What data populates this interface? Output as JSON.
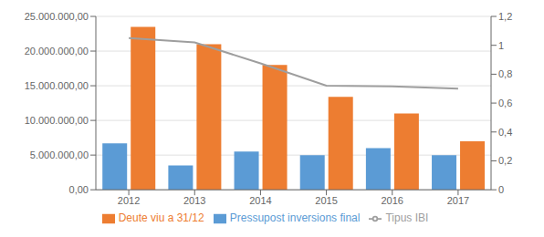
{
  "chart_data": {
    "type": "bar",
    "categories": [
      "2012",
      "2013",
      "2014",
      "2015",
      "2016",
      "2017"
    ],
    "series": [
      {
        "name": "Pressupost inversions final",
        "color": "#5b9bd5",
        "values": [
          6700000,
          3500000,
          5500000,
          5000000,
          6000000,
          5000000
        ]
      },
      {
        "name": "Deute viu a 31/12",
        "color": "#ed7d31",
        "values": [
          23500000,
          21000000,
          18000000,
          13400000,
          11000000,
          7000000
        ]
      },
      {
        "name": "Tipus IBI",
        "type": "line",
        "axis": "y2",
        "color": "#9e9e9e",
        "values": [
          1.05,
          1.02,
          0.875,
          0.72,
          0.715,
          0.7
        ]
      }
    ],
    "ylim": [
      0,
      25000000
    ],
    "yticks": [
      {
        "value": 0,
        "label": "0,00"
      },
      {
        "value": 5000000,
        "label": "5.000.000,00"
      },
      {
        "value": 10000000,
        "label": "10.000.000,00"
      },
      {
        "value": 15000000,
        "label": "15.000.000,00"
      },
      {
        "value": 20000000,
        "label": "20.000.000,00"
      },
      {
        "value": 25000000,
        "label": "25.000.000,00"
      }
    ],
    "y2lim": [
      0,
      1.2
    ],
    "y2ticks": [
      0,
      {
        "value": 0.2,
        "label": "0,2"
      },
      {
        "value": 0.4,
        "label": "0,4"
      },
      {
        "value": 0.6,
        "label": "0,6"
      },
      {
        "value": 0.8,
        "label": "0,8"
      },
      1,
      {
        "value": 1.2,
        "label": "1,2"
      }
    ],
    "grid": true,
    "legend": "bottom"
  }
}
